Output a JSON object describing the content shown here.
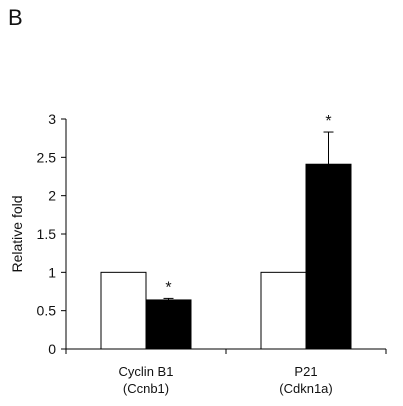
{
  "panel_label": "B",
  "chart_data": {
    "type": "bar",
    "title": "",
    "xlabel": "",
    "ylabel": "Relative fold",
    "ylim": [
      0,
      3
    ],
    "yticks": [
      "0",
      "0.5",
      "1",
      "1.5",
      "2",
      "2.5",
      "3"
    ],
    "categories": [
      {
        "line1": "Cyclin B1",
        "line2": "(Ccnb1)"
      },
      {
        "line1": "P21",
        "line2": "(Cdkn1a)"
      }
    ],
    "series": [
      {
        "fill": "#ffffff",
        "values": [
          1.0,
          1.0
        ],
        "errors": [
          0,
          0
        ]
      },
      {
        "fill": "#000000",
        "values": [
          0.64,
          2.41
        ],
        "errors": [
          0.02,
          0.42
        ],
        "significance": [
          "*",
          "*"
        ]
      }
    ],
    "grid": false,
    "legend": "none"
  }
}
